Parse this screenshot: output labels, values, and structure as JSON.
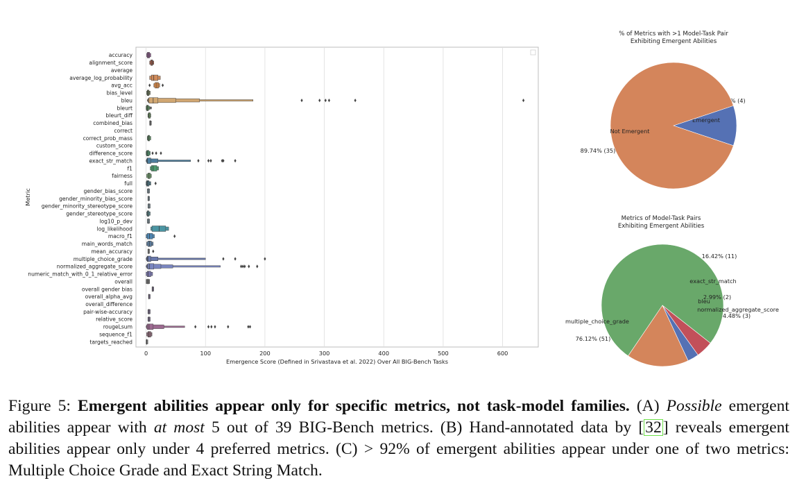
{
  "chart_data": [
    {
      "type": "boxen",
      "orientation": "horizontal",
      "xlabel": "Emergence Score (Defined in Srivastava et al. 2022) Over All BIG-Bench Tasks",
      "ylabel": "Metric",
      "xlim": [
        -17,
        660
      ],
      "xticks": [
        0,
        100,
        200,
        300,
        400,
        500,
        600
      ],
      "grid": "vertical",
      "legend": "top-right (empty)",
      "metrics": [
        {
          "name": "accuracy",
          "color": "#8d5e8c",
          "levels": [
            [
              1,
              8
            ],
            [
              2,
              6
            ]
          ],
          "median": 4,
          "outliers": []
        },
        {
          "name": "alignment_score",
          "color": "#a55f4b",
          "levels": [
            [
              6,
              13
            ],
            [
              8,
              11
            ]
          ],
          "median": 10,
          "outliers": []
        },
        {
          "name": "average",
          "color": "#8a8a8a",
          "levels": [],
          "median": null,
          "outliers": []
        },
        {
          "name": "average_log_probability",
          "color": "#d08b5b",
          "levels": [
            [
              6,
              24
            ],
            [
              9,
              20
            ]
          ],
          "median": 13,
          "outliers": []
        },
        {
          "name": "avg_acc",
          "color": "#d98a49",
          "levels": [
            [
              13,
              23
            ],
            [
              15,
              21
            ]
          ],
          "median": 18,
          "outliers": [
            6,
            28
          ]
        },
        {
          "name": "bias_level",
          "color": "#6c7a58",
          "levels": [
            [
              1,
              7
            ],
            [
              2,
              5
            ]
          ],
          "median": 3,
          "outliers": []
        },
        {
          "name": "bleu",
          "color": "#d1a772",
          "levels": [
            [
              2,
              180
            ],
            [
              3,
              90
            ],
            [
              4,
              50
            ],
            [
              5,
              20
            ]
          ],
          "median": 12,
          "outliers": [
            262,
            292,
            302,
            308,
            352,
            635
          ]
        },
        {
          "name": "bleurt",
          "color": "#5a8b5d",
          "levels": [
            [
              0,
              6
            ],
            [
              1,
              4
            ]
          ],
          "median": 2,
          "outliers": [
            8
          ]
        },
        {
          "name": "bleurt_diff",
          "color": "#6b9460",
          "levels": [
            [
              3,
              8
            ],
            [
              4,
              7
            ]
          ],
          "median": 5,
          "outliers": []
        },
        {
          "name": "combined_bias",
          "color": "#6e6e6e",
          "levels": [
            [
              6,
              9
            ]
          ],
          "median": 7,
          "outliers": []
        },
        {
          "name": "correct",
          "color": "#8a8a8a",
          "levels": [],
          "median": null,
          "outliers": []
        },
        {
          "name": "correct_prob_mass",
          "color": "#5d8d62",
          "levels": [
            [
              2,
              8
            ],
            [
              3,
              6
            ]
          ],
          "median": 4,
          "outliers": []
        },
        {
          "name": "custom_score",
          "color": "#8a8a8a",
          "levels": [],
          "median": null,
          "outliers": []
        },
        {
          "name": "difference_score",
          "color": "#4e8a68",
          "levels": [
            [
              0,
              7
            ],
            [
              1,
              5
            ]
          ],
          "median": 2,
          "outliers": [
            11,
            17,
            25
          ]
        },
        {
          "name": "exact_str_match",
          "color": "#4d7d9c",
          "levels": [
            [
              0,
              75
            ],
            [
              1,
              20
            ],
            [
              2,
              8
            ]
          ],
          "median": 2,
          "outliers": [
            88,
            105,
            109,
            128,
            130,
            150
          ]
        },
        {
          "name": "f1",
          "color": "#4d9a6e",
          "levels": [
            [
              7,
              21
            ],
            [
              9,
              18
            ]
          ],
          "median": 12,
          "outliers": []
        },
        {
          "name": "fairness",
          "color": "#6f9a6b",
          "levels": [
            [
              1,
              9
            ],
            [
              3,
              7
            ]
          ],
          "median": 5,
          "outliers": []
        },
        {
          "name": "full",
          "color": "#4a6e7a",
          "levels": [
            [
              0,
              8
            ],
            [
              1,
              5
            ]
          ],
          "median": 2,
          "outliers": [
            16
          ]
        },
        {
          "name": "gender_bias_score",
          "color": "#7f8f98",
          "levels": [
            [
              2,
              6
            ]
          ],
          "median": 4,
          "outliers": []
        },
        {
          "name": "gender_minority_bias_score",
          "color": "#7f8f98",
          "levels": [
            [
              3,
              6
            ]
          ],
          "median": 4,
          "outliers": []
        },
        {
          "name": "gender_minority_stereotype_score",
          "color": "#7f8f98",
          "levels": [
            [
              3,
              7
            ]
          ],
          "median": 5,
          "outliers": []
        },
        {
          "name": "gender_stereotype_score",
          "color": "#5d8a90",
          "levels": [
            [
              1,
              7
            ],
            [
              2,
              5
            ]
          ],
          "median": 3,
          "outliers": []
        },
        {
          "name": "log10_p_dev",
          "color": "#7f8f98",
          "levels": [
            [
              2,
              6
            ]
          ],
          "median": 4,
          "outliers": []
        },
        {
          "name": "log_likelihood",
          "color": "#4b95a3",
          "levels": [
            [
              8,
              38
            ],
            [
              10,
              33
            ]
          ],
          "median": 22,
          "outliers": []
        },
        {
          "name": "macro_f1",
          "color": "#4f87b4",
          "levels": [
            [
              0,
              14
            ],
            [
              2,
              11
            ]
          ],
          "median": 6,
          "outliers": [
            48
          ]
        },
        {
          "name": "main_words_match",
          "color": "#5f7fa0",
          "levels": [
            [
              1,
              12
            ],
            [
              3,
              9
            ]
          ],
          "median": 6,
          "outliers": []
        },
        {
          "name": "mean_accuracy",
          "color": "#8a8a8a",
          "levels": [
            [
              3,
              6
            ]
          ],
          "median": 4,
          "outliers": [
            12
          ]
        },
        {
          "name": "multiple_choice_grade",
          "color": "#6979ac",
          "levels": [
            [
              0,
              100
            ],
            [
              1,
              20
            ],
            [
              2,
              8
            ]
          ],
          "median": 3,
          "outliers": [
            130,
            150,
            200
          ]
        },
        {
          "name": "normalized_aggregate_score",
          "color": "#7a86c0",
          "levels": [
            [
              0,
              125
            ],
            [
              1,
              45
            ],
            [
              2,
              25
            ],
            [
              3,
              13
            ]
          ],
          "median": 6,
          "outliers": [
            160,
            163,
            166,
            173,
            187
          ]
        },
        {
          "name": "numeric_match_with_0_1_relative_error",
          "color": "#7d7ab0",
          "levels": [
            [
              0,
              11
            ],
            [
              2,
              8
            ]
          ],
          "median": 4,
          "outliers": []
        },
        {
          "name": "overall",
          "color": "#6e6e6e",
          "levels": [
            [
              0,
              6
            ]
          ],
          "median": 3,
          "outliers": []
        },
        {
          "name": "overall gender bias",
          "color": "#7a6e8a",
          "levels": [
            [
              10,
              13
            ]
          ],
          "median": 11,
          "outliers": []
        },
        {
          "name": "overall_alpha_avg",
          "color": "#7a6e8a",
          "levels": [
            [
              4,
              7
            ]
          ],
          "median": 5,
          "outliers": []
        },
        {
          "name": "overall_difference",
          "color": "#8a8a8a",
          "levels": [],
          "median": null,
          "outliers": []
        },
        {
          "name": "pair-wise-accuracy",
          "color": "#7a6e8a",
          "levels": [
            [
              3,
              7
            ]
          ],
          "median": 5,
          "outliers": []
        },
        {
          "name": "relative_score",
          "color": "#7a6e8a",
          "levels": [
            [
              3,
              7
            ]
          ],
          "median": 5,
          "outliers": []
        },
        {
          "name": "rougeLsum",
          "color": "#9c6a90",
          "levels": [
            [
              0,
              65
            ],
            [
              1,
              30
            ],
            [
              2,
              12
            ]
          ],
          "median": 5,
          "outliers": [
            83,
            105,
            110,
            116,
            138,
            172,
            175
          ]
        },
        {
          "name": "sequence_f1",
          "color": "#8d6a78",
          "levels": [
            [
              1,
              10
            ],
            [
              3,
              8
            ]
          ],
          "median": 5,
          "outliers": []
        },
        {
          "name": "targets_reached",
          "color": "#7a7a7a",
          "levels": [
            [
              0,
              3
            ]
          ],
          "median": 1,
          "outliers": []
        }
      ]
    },
    {
      "type": "pie",
      "title": "% of Metrics with >1 Model-Task Pair\nExhibiting Emergent Abilities",
      "slices": [
        {
          "label": "Emergent",
          "value": 4,
          "pct_label": "10.26%  (4)",
          "color": "#5571b4"
        },
        {
          "label": "Not Emergent",
          "value": 35,
          "pct_label": "89.74%  (35)",
          "color": "#d4855b"
        }
      ]
    },
    {
      "type": "pie",
      "title": "Metrics of Model-Task Pairs\nExhibiting Emergent Abilities",
      "slices": [
        {
          "label": "multiple_choice_grade",
          "value": 51,
          "pct_label": "76.12%  (51)",
          "color": "#69a86a"
        },
        {
          "label": "exact_str_match",
          "value": 11,
          "pct_label": "16.42%  (11)",
          "color": "#d4855b"
        },
        {
          "label": "bleu",
          "value": 2,
          "pct_label": "2.99%  (2)",
          "color": "#5571b4"
        },
        {
          "label": "normalized_aggregate_score",
          "value": 3,
          "pct_label": "4.48%  (3)",
          "color": "#c2505a"
        }
      ]
    }
  ],
  "caption": {
    "figure_label": "Figure 5:",
    "bold_title": "Emergent abilities appear only for specific metrics, not task-model families.",
    "part_a": "(A)",
    "possible": "Possible",
    "text_1": "emergent abilities appear with",
    "at_most": "at most",
    "text_2": "5 out of 39 BIG-Bench metrics. (B) Hand-annotated data by",
    "cite_open": "[",
    "cite_num": "32",
    "cite_close": "]",
    "text_3": "reveals emergent abilities appear only under 4 preferred metrics. (C)",
    "gt": ">",
    "percent": "92%",
    "text_4": "of emergent abilities appear under one of two metrics: Multiple Choice Grade and Exact String Match."
  }
}
